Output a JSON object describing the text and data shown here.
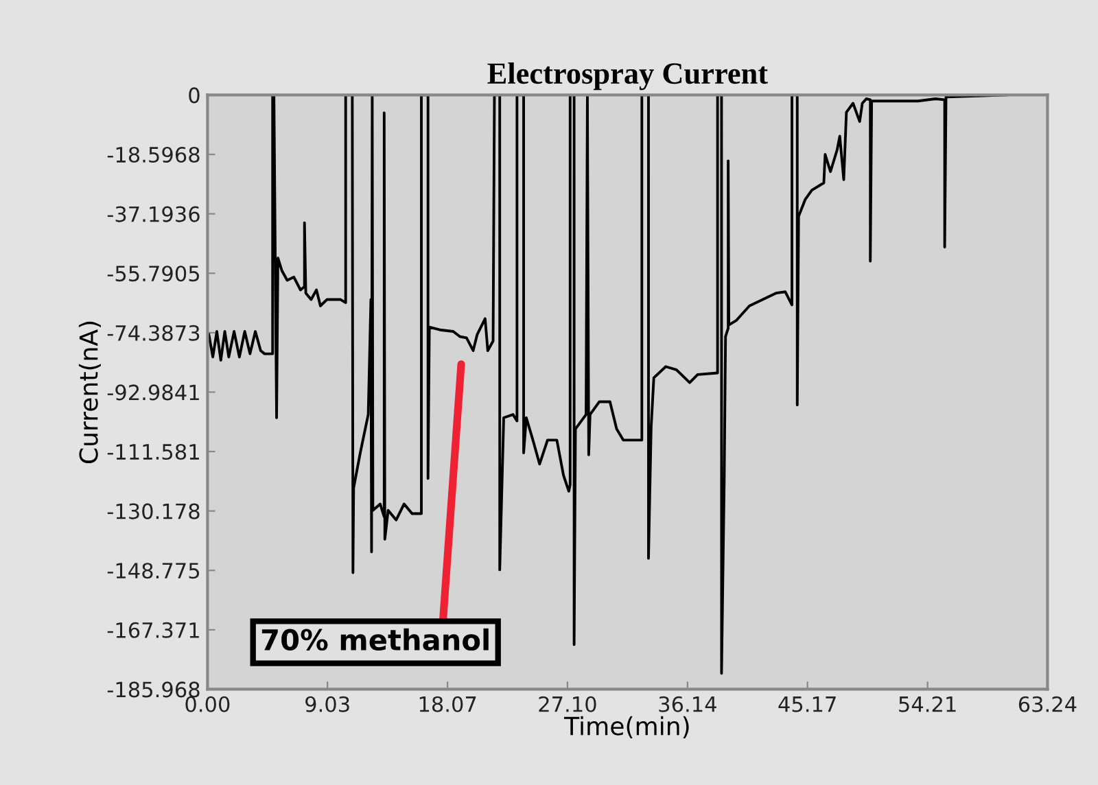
{
  "chart_data": {
    "type": "line",
    "title": "Electrospray Current",
    "xlabel": "Time(min)",
    "ylabel": "Current(nA)",
    "xlim": [
      0,
      63.24
    ],
    "ylim": [
      -185.968,
      0
    ],
    "xticks": [
      {
        "value": 0,
        "label": "0.00"
      },
      {
        "value": 9.03,
        "label": "9.03"
      },
      {
        "value": 18.07,
        "label": "18.07"
      },
      {
        "value": 27.1,
        "label": "27.10"
      },
      {
        "value": 36.14,
        "label": "36.14"
      },
      {
        "value": 45.17,
        "label": "45.17"
      },
      {
        "value": 54.21,
        "label": "54.21"
      },
      {
        "value": 63.24,
        "label": "63.24"
      }
    ],
    "yticks": [
      0,
      -18.5968,
      -37.1936,
      -55.7905,
      -74.3873,
      -92.9841,
      -111.581,
      -130.178,
      -148.775,
      -167.371,
      -185.968
    ],
    "grid": false,
    "legend": false,
    "marker": "none",
    "line_style": "solid",
    "annotations": [
      "70% methanol"
    ],
    "series": [
      {
        "color": "#000000",
        "x": [
          0.1,
          0.4,
          0.7,
          1.0,
          1.3,
          1.6,
          2.0,
          2.4,
          2.8,
          3.2,
          3.6,
          4.0,
          4.3,
          4.9,
          4.9,
          5.0,
          5.2,
          5.3,
          5.6,
          6.0,
          6.5,
          7.0,
          7.3,
          7.3,
          7.4,
          7.8,
          8.2,
          8.5,
          9.0,
          9.5,
          10.0,
          10.4,
          10.4,
          10.9,
          10.95,
          11.0,
          11.5,
          12.1,
          12.3,
          12.35,
          12.4,
          12.45,
          13.0,
          13.3,
          13.3,
          13.35,
          13.6,
          14.2,
          14.8,
          15.4,
          16.1,
          16.1,
          16.6,
          16.6,
          16.7,
          17.5,
          18.5,
          19.0,
          19.5,
          20.0,
          20.3,
          20.9,
          21.1,
          21.5,
          21.6,
          22.0,
          22.0,
          22.1,
          22.3,
          23.0,
          23.3,
          23.3,
          23.8,
          23.8,
          24.0,
          24.5,
          25.0,
          25.6,
          26.3,
          26.8,
          27.2,
          27.3,
          27.3,
          27.6,
          27.6,
          27.7,
          28.5,
          28.6,
          28.7,
          28.8,
          29.5,
          30.3,
          30.8,
          31.3,
          32.7,
          32.7,
          33.2,
          33.2,
          33.4,
          33.6,
          34.5,
          35.3,
          35.8,
          36.3,
          36.9,
          38.4,
          38.4,
          38.7,
          38.7,
          38.9,
          39.0,
          39.2,
          39.2,
          39.25,
          39.8,
          40.8,
          41.8,
          42.8,
          43.5,
          44.0,
          44.0,
          44.4,
          44.4,
          44.5,
          45.0,
          45.5,
          46.4,
          46.5,
          46.9,
          47.4,
          47.6,
          47.9,
          48.1,
          48.6,
          49.1,
          49.3,
          49.6,
          49.9,
          49.9,
          50.0,
          52.4,
          53.5,
          54.8,
          55.5,
          55.5,
          55.6,
          58.0,
          60.1
        ],
        "values": [
          -75,
          -82,
          -74,
          -83,
          -74,
          -82,
          -74,
          -82,
          -74,
          -81,
          -74,
          -80,
          -81,
          -81,
          0,
          0,
          -101,
          -51,
          -55,
          -58,
          -57,
          -61,
          -60,
          -40,
          -62,
          -64,
          -61,
          -66,
          -64,
          -64,
          -64,
          -65,
          0,
          0,
          -149.5,
          -123,
          -112,
          -100,
          -64,
          -143,
          0,
          -130,
          -128,
          -132,
          -5.6,
          -139,
          -130,
          -133,
          -128,
          -131,
          -131,
          0,
          0,
          -120,
          -72.6,
          -73.5,
          -74,
          -75.6,
          -76,
          -80,
          -75,
          -70,
          -80,
          -77,
          0,
          0,
          -148.6,
          -133,
          -101,
          -100,
          -102,
          0,
          0,
          -112,
          -101,
          -108,
          -115.5,
          -108,
          -108,
          -119,
          -124,
          -122,
          0,
          0,
          -172,
          -104.5,
          -100,
          0,
          -112.6,
          -100,
          -96,
          -96,
          -104.5,
          -108,
          -108,
          0,
          0,
          -145,
          -104,
          -88.5,
          -85,
          -86,
          -88,
          -90,
          -87.5,
          -87,
          0,
          0,
          -181,
          -121,
          -75.6,
          -73,
          -20.6,
          -72,
          -70.6,
          -66,
          -64,
          -62,
          -61.6,
          -65.7,
          0,
          0,
          -97,
          -38,
          -32.7,
          -29.8,
          -27.5,
          -18.6,
          -24,
          -17.2,
          -12.9,
          -26.5,
          -5.4,
          -2.6,
          -8.3,
          -2.6,
          -1.2,
          -1.5,
          -52,
          -1.9,
          -1.9,
          -1.9,
          -1.2,
          -1.5,
          -47.6,
          -0.6,
          -0.3,
          0
        ]
      }
    ]
  }
}
